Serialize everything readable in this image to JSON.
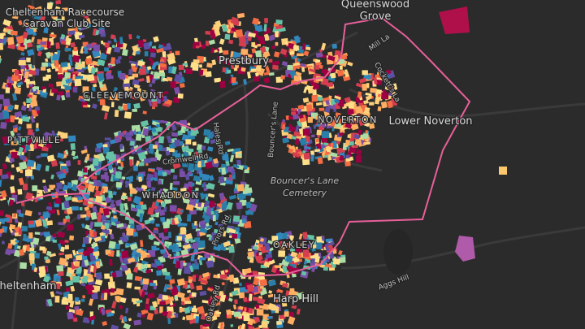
{
  "labels": {
    "racecourse": "Cheltenham Racecourse",
    "caravan": "Caravan Club Site",
    "queenswood": "Queenswood",
    "grove": "Grove",
    "mill_la": "Mill La",
    "prestbury": "Prestbury",
    "cleevemount": "CLEEVEMOUNT",
    "pittville": "PITTVILLE",
    "noverton": "NOVERTON",
    "lower_noverton": "Lower Noverton",
    "cromwell_rd": "Cromwell Rd",
    "whaddon": "WHADDON",
    "bouncers_lane": "Bouncer's Lane",
    "cemetery": "Cemetery",
    "oakley": "OAKLEY",
    "aggs_hill": "Aggs Hill",
    "harp_hill": "Harp Hill",
    "cheltenham": "Cheltenham",
    "priors_rd": "Priors Rd",
    "oakley_rd": "Oakley Rd",
    "hales_rd": "Hales Rd",
    "cockett": "Cockett's La"
  }
}
